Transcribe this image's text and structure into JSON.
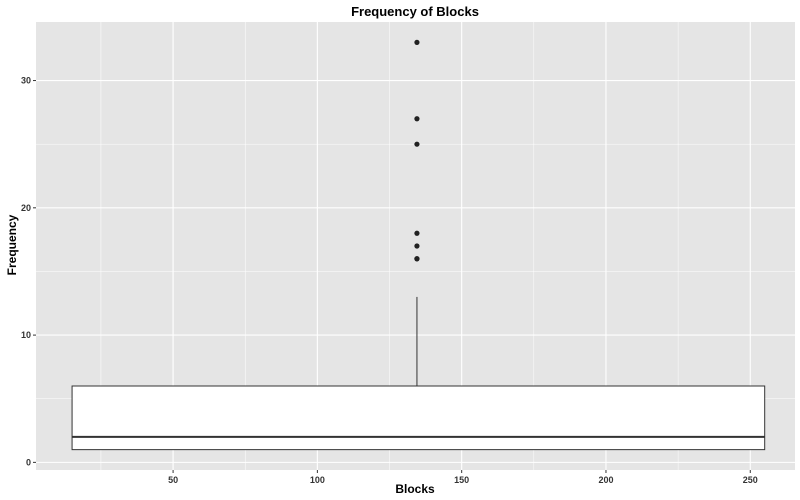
{
  "chart_data": {
    "type": "box",
    "title": "Frequency of Blocks",
    "xlabel": "Blocks",
    "ylabel": "Frequency",
    "xlim": [
      2.5,
      265.5
    ],
    "ylim": [
      -0.6,
      34.6
    ],
    "x_ticks": [
      50,
      100,
      150,
      200,
      250
    ],
    "y_ticks": [
      0,
      10,
      20,
      30
    ],
    "grid": true,
    "box": {
      "x_center": 134.5,
      "x_min": 15,
      "x_max": 255,
      "q1": 1,
      "median": 2,
      "q3": 6,
      "whisker_low": 1,
      "whisker_high": 13
    },
    "outliers": [
      16,
      16,
      17,
      18,
      25,
      27,
      33
    ],
    "colors": {
      "panel": "#e5e5e5",
      "grid_major": "#ffffff",
      "box_fill": "#ffffff",
      "box_stroke": "#333333",
      "point": "#222222"
    }
  }
}
